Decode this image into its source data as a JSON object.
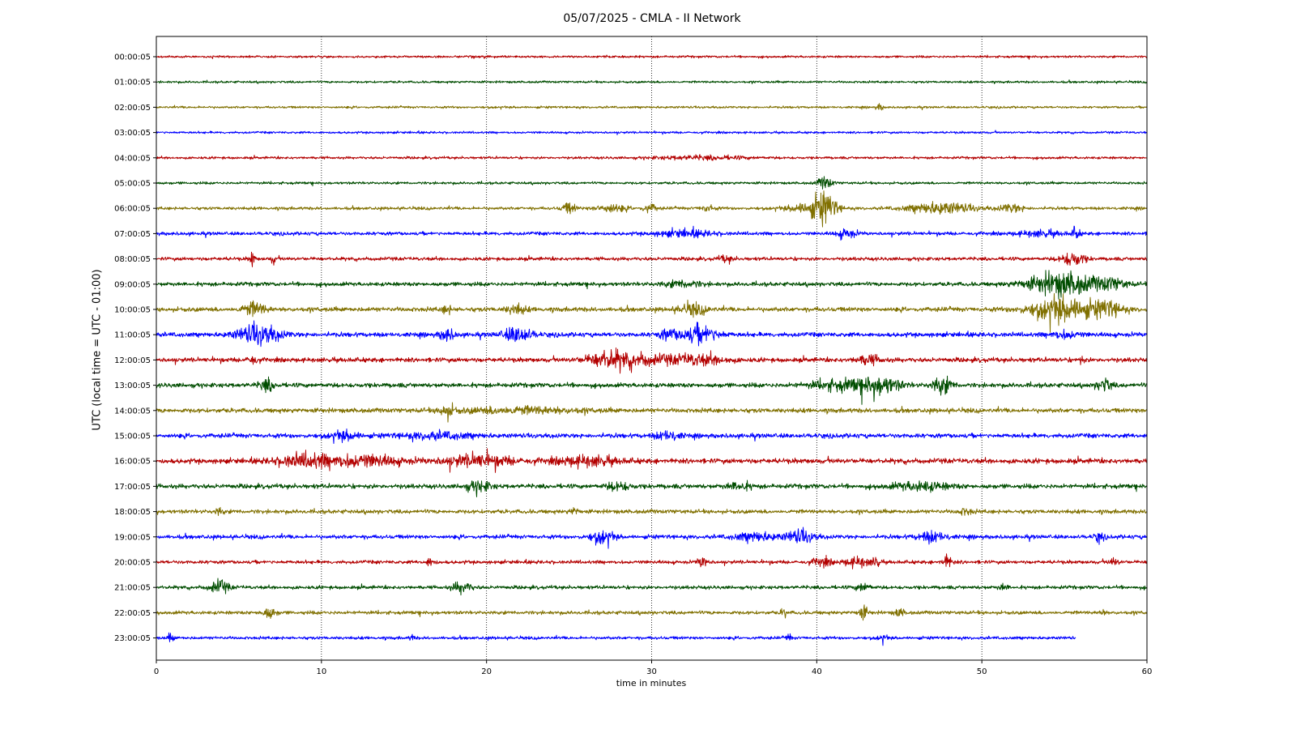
{
  "chart_data": {
    "type": "line",
    "title": "05/07/2025 - CMLA - II Network",
    "xlabel": "time in minutes",
    "ylabel": "UTC (local time = UTC - 01:00)",
    "xlim": [
      0,
      60
    ],
    "x_ticks": [
      0,
      10,
      20,
      30,
      40,
      50,
      60
    ],
    "grid": "vertical dotted",
    "colors": [
      "#b30000",
      "#004d00",
      "#807000",
      "#0000ff"
    ],
    "series": [
      {
        "label": "00:00:05",
        "end_minute": 60,
        "base_amp": 0.22,
        "bursts": []
      },
      {
        "label": "01:00:05",
        "end_minute": 60,
        "base_amp": 0.22,
        "bursts": []
      },
      {
        "label": "02:00:05",
        "end_minute": 60,
        "base_amp": 0.22,
        "bursts": [
          [
            43.8,
            0.15,
            0.6
          ]
        ]
      },
      {
        "label": "03:00:05",
        "end_minute": 60,
        "base_amp": 0.22,
        "bursts": []
      },
      {
        "label": "04:00:05",
        "end_minute": 60,
        "base_amp": 0.25,
        "bursts": [
          [
            33,
            2,
            0.35
          ]
        ]
      },
      {
        "label": "05:00:05",
        "end_minute": 60,
        "base_amp": 0.25,
        "bursts": [
          [
            40.5,
            0.3,
            1.2
          ]
        ]
      },
      {
        "label": "06:00:05",
        "end_minute": 60,
        "base_amp": 0.3,
        "bursts": [
          [
            25,
            0.3,
            1.0
          ],
          [
            27.5,
            0.6,
            0.9
          ],
          [
            29.9,
            0.3,
            0.8
          ],
          [
            33.4,
            0.3,
            0.6
          ],
          [
            39.5,
            0.8,
            1.1
          ],
          [
            40.5,
            0.5,
            2.6
          ],
          [
            47.5,
            1.4,
            1.1
          ],
          [
            51.8,
            0.5,
            0.8
          ]
        ]
      },
      {
        "label": "07:00:05",
        "end_minute": 60,
        "base_amp": 0.35,
        "bursts": [
          [
            32,
            1.2,
            0.6
          ],
          [
            41.8,
            0.4,
            0.9
          ],
          [
            53.5,
            1.0,
            0.5
          ],
          [
            55.7,
            0.15,
            1.2
          ]
        ]
      },
      {
        "label": "08:00:05",
        "end_minute": 60,
        "base_amp": 0.35,
        "bursts": [
          [
            5.8,
            0.1,
            1.8
          ],
          [
            7.1,
            0.1,
            1.0
          ],
          [
            34.5,
            0.3,
            0.6
          ],
          [
            55.5,
            0.5,
            1.4
          ]
        ]
      },
      {
        "label": "09:00:05",
        "end_minute": 60,
        "base_amp": 0.4,
        "bursts": [
          [
            31.9,
            0.8,
            0.6
          ],
          [
            54.8,
            1.4,
            2.4
          ],
          [
            57.8,
            0.7,
            1.0
          ]
        ]
      },
      {
        "label": "10:00:05",
        "end_minute": 60,
        "base_amp": 0.45,
        "bursts": [
          [
            5.9,
            0.5,
            1.3
          ],
          [
            17.6,
            0.2,
            0.8
          ],
          [
            21.8,
            0.4,
            0.9
          ],
          [
            32.5,
            0.6,
            1.0
          ],
          [
            55,
            1.4,
            2.4
          ],
          [
            57.7,
            0.6,
            1.2
          ]
        ]
      },
      {
        "label": "11:00:05",
        "end_minute": 60,
        "base_amp": 0.45,
        "bursts": [
          [
            6.2,
            0.9,
            1.9
          ],
          [
            17.6,
            0.3,
            1.2
          ],
          [
            21.9,
            0.6,
            1.5
          ],
          [
            31,
            0.4,
            0.9
          ],
          [
            32.9,
            0.8,
            1.7
          ],
          [
            55,
            0.6,
            0.7
          ]
        ]
      },
      {
        "label": "12:00:05",
        "end_minute": 60,
        "base_amp": 0.45,
        "bursts": [
          [
            5.8,
            0.2,
            0.9
          ],
          [
            27.4,
            0.9,
            1.6
          ],
          [
            29.5,
            1.2,
            0.9
          ],
          [
            32.8,
            1.2,
            1.0
          ],
          [
            43.1,
            0.5,
            0.9
          ],
          [
            56,
            0.1,
            0.9
          ]
        ]
      },
      {
        "label": "13:00:05",
        "end_minute": 60,
        "base_amp": 0.45,
        "bursts": [
          [
            6.7,
            0.3,
            1.2
          ],
          [
            41.5,
            1.3,
            1.0
          ],
          [
            43.9,
            0.8,
            1.6
          ],
          [
            47.6,
            0.4,
            1.7
          ],
          [
            57.4,
            0.3,
            1.3
          ]
        ]
      },
      {
        "label": "14:00:05",
        "end_minute": 60,
        "base_amp": 0.45,
        "bursts": [
          [
            17.6,
            0.3,
            1.3
          ],
          [
            22,
            2.5,
            0.6
          ]
        ]
      },
      {
        "label": "15:00:05",
        "end_minute": 60,
        "base_amp": 0.45,
        "bursts": [
          [
            11.5,
            0.6,
            0.8
          ],
          [
            17,
            1.5,
            0.6
          ],
          [
            31,
            0.5,
            0.9
          ]
        ]
      },
      {
        "label": "16:00:05",
        "end_minute": 60,
        "base_amp": 0.5,
        "bursts": [
          [
            9,
            1.2,
            1.2
          ],
          [
            12.5,
            1.6,
            1.1
          ],
          [
            19.5,
            1.5,
            1.1
          ],
          [
            26,
            1.3,
            0.9
          ]
        ]
      },
      {
        "label": "17:00:05",
        "end_minute": 60,
        "base_amp": 0.45,
        "bursts": [
          [
            19.5,
            0.5,
            1.1
          ],
          [
            28,
            0.5,
            0.8
          ],
          [
            35.3,
            0.5,
            0.8
          ],
          [
            46.3,
            1.2,
            0.8
          ]
        ]
      },
      {
        "label": "18:00:05",
        "end_minute": 60,
        "base_amp": 0.4,
        "bursts": [
          [
            3.8,
            0.2,
            0.6
          ],
          [
            25.3,
            0.2,
            0.6
          ],
          [
            49,
            0.3,
            0.6
          ]
        ]
      },
      {
        "label": "19:00:05",
        "end_minute": 60,
        "base_amp": 0.4,
        "bursts": [
          [
            27,
            0.5,
            1.1
          ],
          [
            36.3,
            0.9,
            0.8
          ],
          [
            39,
            0.6,
            1.2
          ],
          [
            47,
            0.6,
            1.0
          ],
          [
            57.1,
            0.2,
            0.8
          ]
        ]
      },
      {
        "label": "20:00:05",
        "end_minute": 60,
        "base_amp": 0.35,
        "bursts": [
          [
            16.6,
            0.2,
            0.8
          ],
          [
            33.1,
            0.2,
            1.1
          ],
          [
            40.3,
            0.4,
            0.8
          ],
          [
            42.5,
            0.6,
            0.9
          ],
          [
            43.6,
            0.1,
            1.4
          ],
          [
            47.9,
            0.2,
            1.3
          ],
          [
            58,
            0.2,
            0.7
          ]
        ]
      },
      {
        "label": "21:00:05",
        "end_minute": 60,
        "base_amp": 0.35,
        "bursts": [
          [
            3.8,
            0.4,
            1.3
          ],
          [
            18.5,
            0.4,
            1.1
          ],
          [
            42.8,
            0.3,
            0.8
          ],
          [
            51.3,
            0.2,
            0.6
          ]
        ]
      },
      {
        "label": "22:00:05",
        "end_minute": 60,
        "base_amp": 0.35,
        "bursts": [
          [
            6.8,
            0.3,
            1.1
          ],
          [
            38,
            0.1,
            1.2
          ],
          [
            42.8,
            0.2,
            1.3
          ],
          [
            45,
            0.2,
            0.8
          ],
          [
            57.3,
            0.1,
            0.8
          ]
        ]
      },
      {
        "label": "23:00:05",
        "end_minute": 55.7,
        "base_amp": 0.3,
        "bursts": [
          [
            0.9,
            0.1,
            1.2
          ],
          [
            15.5,
            0.1,
            0.6
          ],
          [
            38.3,
            0.1,
            0.8
          ],
          [
            44,
            0.2,
            0.5
          ]
        ]
      }
    ]
  }
}
